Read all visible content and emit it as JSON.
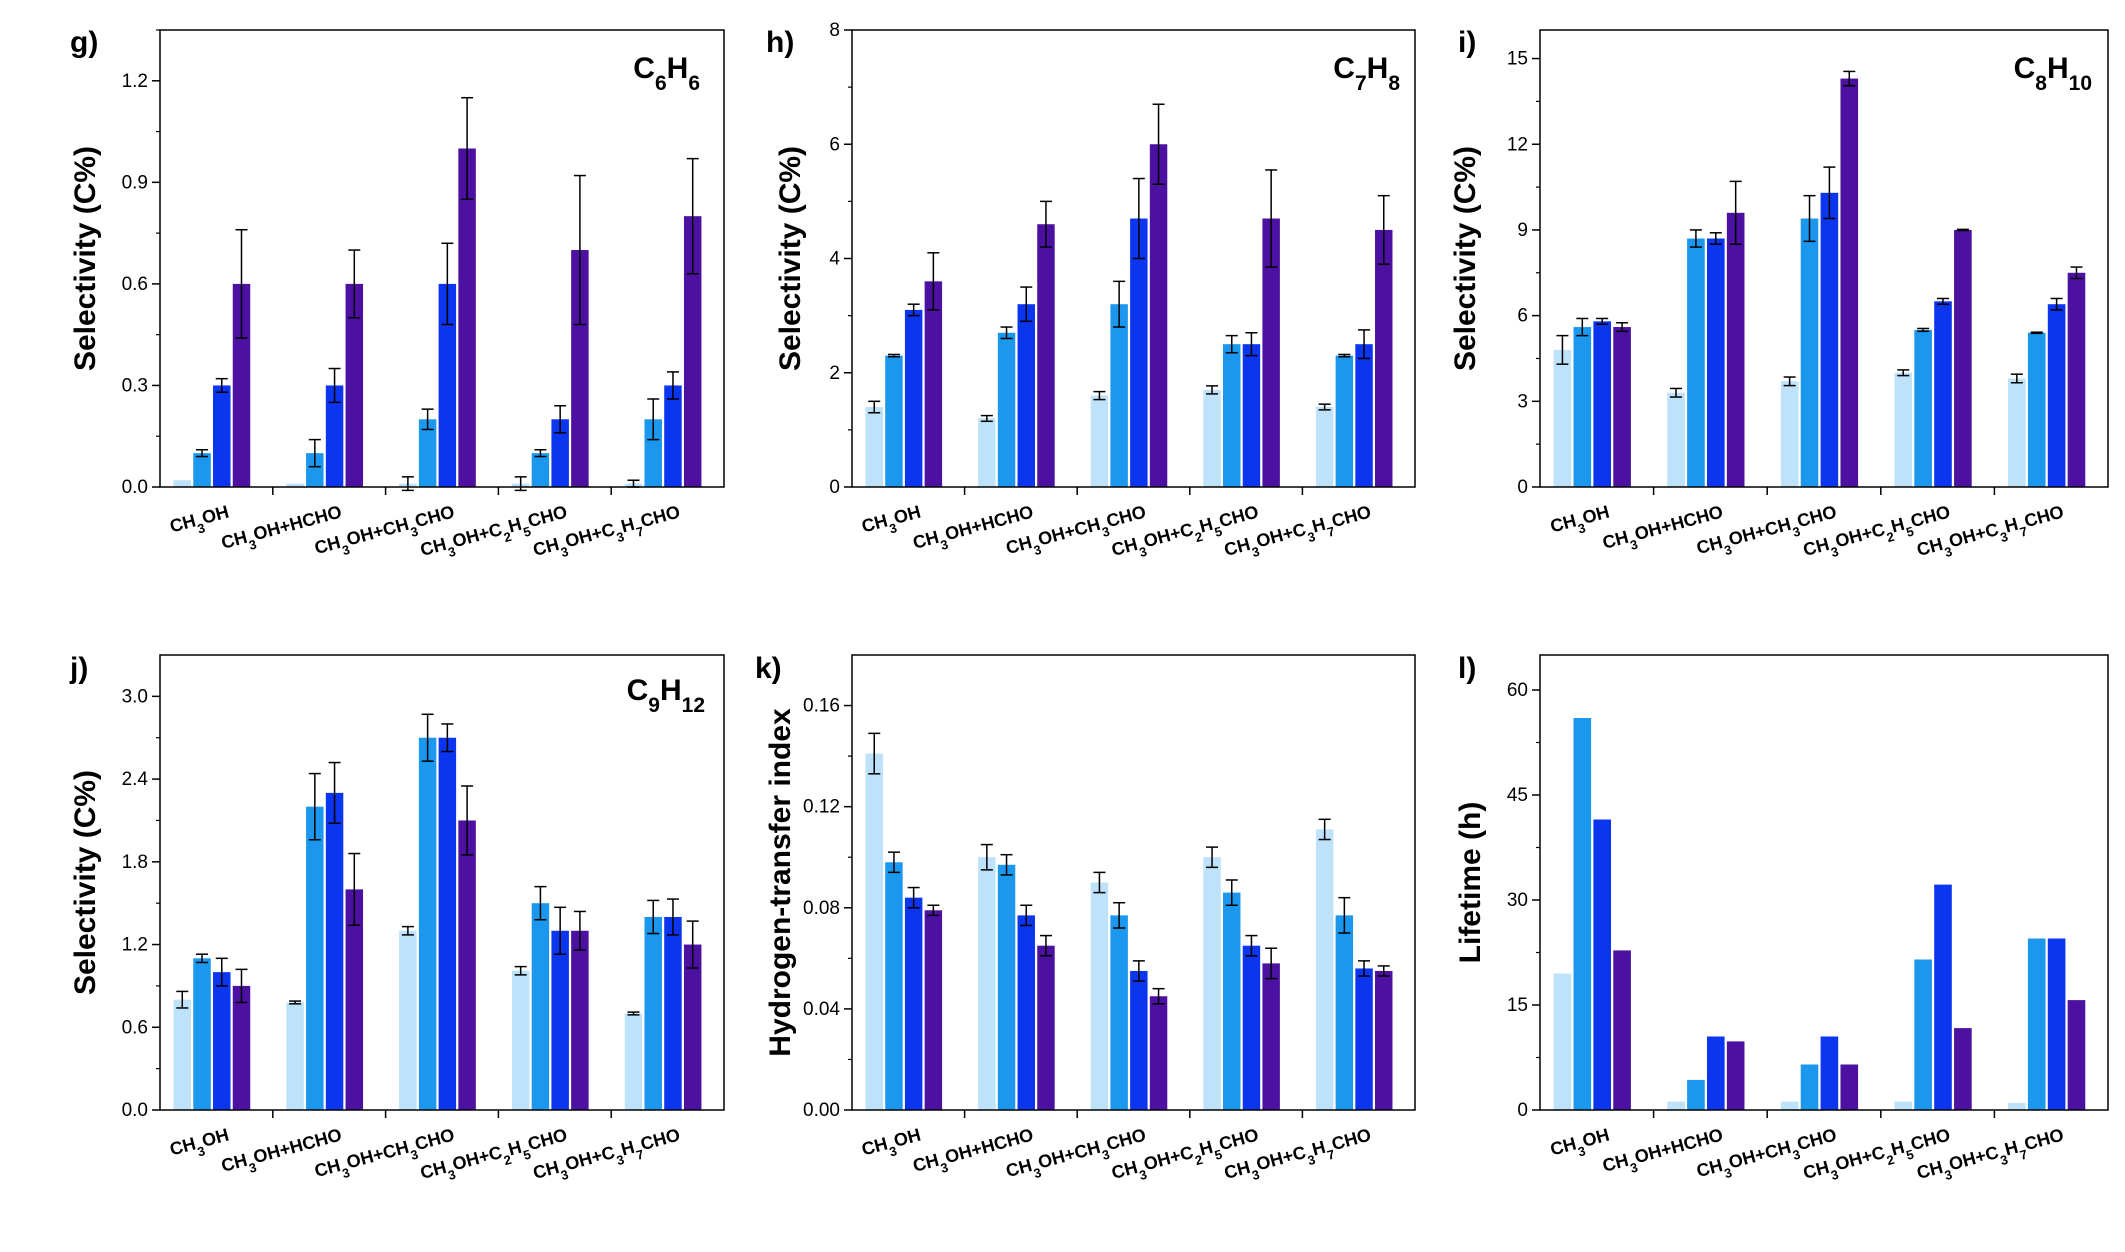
{
  "colors": [
    "#bde2fa",
    "#1b97ee",
    "#0b35ee",
    "#4c11a0"
  ],
  "chart_data": [
    {
      "panel": "g)",
      "type": "bar",
      "title_main": "C",
      "title_parts": [
        [
          "C",
          ""
        ],
        [
          "6",
          "sub"
        ],
        [
          "H",
          ""
        ],
        [
          "6",
          "sub"
        ]
      ],
      "ylabel": "Selectivity (C%)",
      "ylim": [
        0,
        1.35
      ],
      "yticks": [
        0.0,
        0.3,
        0.6,
        0.9,
        1.2
      ],
      "ytick_labels": [
        "0.0",
        "0.3",
        "0.6",
        "0.9",
        "1.2"
      ],
      "categories": [
        [
          [
            "CH",
            ""
          ],
          [
            "3",
            "sub"
          ],
          [
            "OH",
            ""
          ]
        ],
        [
          [
            "CH",
            ""
          ],
          [
            "3",
            "sub"
          ],
          [
            "OH+HCHO",
            ""
          ]
        ],
        [
          [
            "CH",
            ""
          ],
          [
            "3",
            "sub"
          ],
          [
            "OH+CH",
            ""
          ],
          [
            "3",
            "sub"
          ],
          [
            "CHO",
            ""
          ]
        ],
        [
          [
            "CH",
            ""
          ],
          [
            "3",
            "sub"
          ],
          [
            "OH+C",
            ""
          ],
          [
            "2",
            "sub"
          ],
          [
            "H",
            ""
          ],
          [
            "5",
            "sub"
          ],
          [
            "CHO",
            ""
          ]
        ],
        [
          [
            "CH",
            ""
          ],
          [
            "3",
            "sub"
          ],
          [
            "OH+C",
            ""
          ],
          [
            "3",
            "sub"
          ],
          [
            "H",
            ""
          ],
          [
            "7",
            "sub"
          ],
          [
            "CHO",
            ""
          ]
        ]
      ],
      "series": [
        {
          "values": [
            0.02,
            0.01,
            0.01,
            0.01,
            0.01
          ],
          "err": [
            0,
            0,
            0.02,
            0.02,
            0.01
          ]
        },
        {
          "values": [
            0.1,
            0.1,
            0.2,
            0.1,
            0.2
          ],
          "err": [
            0.01,
            0.04,
            0.03,
            0.01,
            0.06
          ]
        },
        {
          "values": [
            0.3,
            0.3,
            0.6,
            0.2,
            0.3
          ],
          "err": [
            0.02,
            0.05,
            0.12,
            0.04,
            0.04
          ]
        },
        {
          "values": [
            0.6,
            0.6,
            1.0,
            0.7,
            0.8
          ],
          "err": [
            0.16,
            0.1,
            0.15,
            0.22,
            0.17
          ]
        }
      ]
    },
    {
      "panel": "h)",
      "type": "bar",
      "title_parts": [
        [
          "C",
          ""
        ],
        [
          "7",
          "sub"
        ],
        [
          "H",
          ""
        ],
        [
          "8",
          "sub"
        ]
      ],
      "ylabel": "Selectivity (C%)",
      "ylim": [
        0,
        8
      ],
      "yticks": [
        0,
        2,
        4,
        6,
        8
      ],
      "ytick_labels": [
        "0",
        "2",
        "4",
        "6",
        "8"
      ],
      "categories": [
        [
          [
            "CH",
            ""
          ],
          [
            "3",
            "sub"
          ],
          [
            "OH",
            ""
          ]
        ],
        [
          [
            "CH",
            ""
          ],
          [
            "3",
            "sub"
          ],
          [
            "OH+HCHO",
            ""
          ]
        ],
        [
          [
            "CH",
            ""
          ],
          [
            "3",
            "sub"
          ],
          [
            "OH+CH",
            ""
          ],
          [
            "3",
            "sub"
          ],
          [
            "CHO",
            ""
          ]
        ],
        [
          [
            "CH",
            ""
          ],
          [
            "3",
            "sub"
          ],
          [
            "OH+C",
            ""
          ],
          [
            "2",
            "sub"
          ],
          [
            "H",
            ""
          ],
          [
            "5",
            "sub"
          ],
          [
            "CHO",
            ""
          ]
        ],
        [
          [
            "CH",
            ""
          ],
          [
            "3",
            "sub"
          ],
          [
            "OH+C",
            ""
          ],
          [
            "3",
            "sub"
          ],
          [
            "H",
            ""
          ],
          [
            "7",
            "sub"
          ],
          [
            "CHO",
            ""
          ]
        ]
      ],
      "series": [
        {
          "values": [
            1.4,
            1.2,
            1.6,
            1.7,
            1.4
          ],
          "err": [
            0.1,
            0.05,
            0.07,
            0.07,
            0.05
          ]
        },
        {
          "values": [
            2.3,
            2.7,
            3.2,
            2.5,
            2.3
          ],
          "err": [
            0.02,
            0.1,
            0.4,
            0.15,
            0.02
          ]
        },
        {
          "values": [
            3.1,
            3.2,
            4.7,
            2.5,
            2.5
          ],
          "err": [
            0.1,
            0.3,
            0.7,
            0.2,
            0.25
          ]
        },
        {
          "values": [
            3.6,
            4.6,
            6.0,
            4.7,
            4.5
          ],
          "err": [
            0.5,
            0.4,
            0.7,
            0.85,
            0.6
          ]
        }
      ]
    },
    {
      "panel": "i)",
      "type": "bar",
      "title_parts": [
        [
          "C",
          ""
        ],
        [
          "8",
          "sub"
        ],
        [
          "H",
          ""
        ],
        [
          "10",
          "sub"
        ]
      ],
      "ylabel": "Selectivity (C%)",
      "ylim": [
        0,
        16
      ],
      "yticks": [
        0,
        3,
        6,
        9,
        12,
        15
      ],
      "ytick_labels": [
        "0",
        "3",
        "6",
        "9",
        "12",
        "15"
      ],
      "categories": [
        [
          [
            "CH",
            ""
          ],
          [
            "3",
            "sub"
          ],
          [
            "OH",
            ""
          ]
        ],
        [
          [
            "CH",
            ""
          ],
          [
            "3",
            "sub"
          ],
          [
            "OH+HCHO",
            ""
          ]
        ],
        [
          [
            "CH",
            ""
          ],
          [
            "3",
            "sub"
          ],
          [
            "OH+CH",
            ""
          ],
          [
            "3",
            "sub"
          ],
          [
            "CHO",
            ""
          ]
        ],
        [
          [
            "CH",
            ""
          ],
          [
            "3",
            "sub"
          ],
          [
            "OH+C",
            ""
          ],
          [
            "2",
            "sub"
          ],
          [
            "H",
            ""
          ],
          [
            "5",
            "sub"
          ],
          [
            "CHO",
            ""
          ]
        ],
        [
          [
            "CH",
            ""
          ],
          [
            "3",
            "sub"
          ],
          [
            "OH+C",
            ""
          ],
          [
            "3",
            "sub"
          ],
          [
            "H",
            ""
          ],
          [
            "7",
            "sub"
          ],
          [
            "CHO",
            ""
          ]
        ]
      ],
      "series": [
        {
          "values": [
            4.8,
            3.3,
            3.7,
            4.0,
            3.8
          ],
          "err": [
            0.5,
            0.15,
            0.15,
            0.1,
            0.15
          ]
        },
        {
          "values": [
            5.6,
            8.7,
            9.4,
            5.5,
            5.4
          ],
          "err": [
            0.3,
            0.3,
            0.8,
            0.05,
            0.02
          ]
        },
        {
          "values": [
            5.8,
            8.7,
            10.3,
            6.5,
            6.4
          ],
          "err": [
            0.1,
            0.2,
            0.9,
            0.1,
            0.2
          ]
        },
        {
          "values": [
            5.6,
            9.6,
            14.3,
            9.0,
            7.5
          ],
          "err": [
            0.15,
            1.1,
            0.25,
            0.02,
            0.2
          ]
        }
      ]
    },
    {
      "panel": "j)",
      "type": "bar",
      "title_parts": [
        [
          "C",
          ""
        ],
        [
          "9",
          "sub"
        ],
        [
          "H",
          ""
        ],
        [
          "12",
          "sub"
        ]
      ],
      "ylabel": "Selectivity (C%)",
      "ylim": [
        0,
        3.3
      ],
      "yticks": [
        0.0,
        0.6,
        1.2,
        1.8,
        2.4,
        3.0
      ],
      "ytick_labels": [
        "0.0",
        "0.6",
        "1.2",
        "1.8",
        "2.4",
        "3.0"
      ],
      "categories": [
        [
          [
            "CH",
            ""
          ],
          [
            "3",
            "sub"
          ],
          [
            "OH",
            ""
          ]
        ],
        [
          [
            "CH",
            ""
          ],
          [
            "3",
            "sub"
          ],
          [
            "OH+HCHO",
            ""
          ]
        ],
        [
          [
            "CH",
            ""
          ],
          [
            "3",
            "sub"
          ],
          [
            "OH+CH",
            ""
          ],
          [
            "3",
            "sub"
          ],
          [
            "CHO",
            ""
          ]
        ],
        [
          [
            "CH",
            ""
          ],
          [
            "3",
            "sub"
          ],
          [
            "OH+C",
            ""
          ],
          [
            "2",
            "sub"
          ],
          [
            "H",
            ""
          ],
          [
            "5",
            "sub"
          ],
          [
            "CHO",
            ""
          ]
        ],
        [
          [
            "CH",
            ""
          ],
          [
            "3",
            "sub"
          ],
          [
            "OH+C",
            ""
          ],
          [
            "3",
            "sub"
          ],
          [
            "H",
            ""
          ],
          [
            "7",
            "sub"
          ],
          [
            "CHO",
            ""
          ]
        ]
      ],
      "series": [
        {
          "values": [
            0.8,
            0.78,
            1.3,
            1.01,
            0.7
          ],
          "err": [
            0.06,
            0.01,
            0.03,
            0.03,
            0.01
          ]
        },
        {
          "values": [
            1.1,
            2.2,
            2.7,
            1.5,
            1.4
          ],
          "err": [
            0.03,
            0.24,
            0.17,
            0.12,
            0.12
          ]
        },
        {
          "values": [
            1.0,
            2.3,
            2.7,
            1.3,
            1.4
          ],
          "err": [
            0.1,
            0.22,
            0.1,
            0.17,
            0.13
          ]
        },
        {
          "values": [
            0.9,
            1.6,
            2.1,
            1.3,
            1.2
          ],
          "err": [
            0.12,
            0.26,
            0.25,
            0.14,
            0.17
          ]
        }
      ]
    },
    {
      "panel": "k)",
      "type": "bar",
      "title_parts": [],
      "ylabel": "Hydrogen-transfer index",
      "ylim": [
        0,
        0.18
      ],
      "yticks": [
        0.0,
        0.04,
        0.08,
        0.12,
        0.16
      ],
      "ytick_labels": [
        "0.00",
        "0.04",
        "0.08",
        "0.12",
        "0.16"
      ],
      "categories": [
        [
          [
            "CH",
            ""
          ],
          [
            "3",
            "sub"
          ],
          [
            "OH",
            ""
          ]
        ],
        [
          [
            "CH",
            ""
          ],
          [
            "3",
            "sub"
          ],
          [
            "OH+HCHO",
            ""
          ]
        ],
        [
          [
            "CH",
            ""
          ],
          [
            "3",
            "sub"
          ],
          [
            "OH+CH",
            ""
          ],
          [
            "3",
            "sub"
          ],
          [
            "CHO",
            ""
          ]
        ],
        [
          [
            "CH",
            ""
          ],
          [
            "3",
            "sub"
          ],
          [
            "OH+C",
            ""
          ],
          [
            "2",
            "sub"
          ],
          [
            "H",
            ""
          ],
          [
            "5",
            "sub"
          ],
          [
            "CHO",
            ""
          ]
        ],
        [
          [
            "CH",
            ""
          ],
          [
            "3",
            "sub"
          ],
          [
            "OH+C",
            ""
          ],
          [
            "3",
            "sub"
          ],
          [
            "H",
            ""
          ],
          [
            "7",
            "sub"
          ],
          [
            "CHO",
            ""
          ]
        ]
      ],
      "series": [
        {
          "values": [
            0.141,
            0.1,
            0.09,
            0.1,
            0.111
          ],
          "err": [
            0.008,
            0.005,
            0.004,
            0.004,
            0.004
          ]
        },
        {
          "values": [
            0.098,
            0.097,
            0.077,
            0.086,
            0.077
          ],
          "err": [
            0.004,
            0.004,
            0.005,
            0.005,
            0.007
          ]
        },
        {
          "values": [
            0.084,
            0.077,
            0.055,
            0.065,
            0.056
          ],
          "err": [
            0.004,
            0.004,
            0.004,
            0.004,
            0.003
          ]
        },
        {
          "values": [
            0.079,
            0.065,
            0.045,
            0.058,
            0.055
          ],
          "err": [
            0.002,
            0.004,
            0.003,
            0.006,
            0.002
          ]
        }
      ]
    },
    {
      "panel": "l)",
      "type": "bar",
      "title_parts": [],
      "ylabel": "Lifetime (h)",
      "ylim": [
        0,
        65
      ],
      "yticks": [
        0,
        15,
        30,
        45,
        60
      ],
      "ytick_labels": [
        "0",
        "15",
        "30",
        "45",
        "60"
      ],
      "categories": [
        [
          [
            "CH",
            ""
          ],
          [
            "3",
            "sub"
          ],
          [
            "OH",
            ""
          ]
        ],
        [
          [
            "CH",
            ""
          ],
          [
            "3",
            "sub"
          ],
          [
            "OH+HCHO",
            ""
          ]
        ],
        [
          [
            "CH",
            ""
          ],
          [
            "3",
            "sub"
          ],
          [
            "OH+CH",
            ""
          ],
          [
            "3",
            "sub"
          ],
          [
            "CHO",
            ""
          ]
        ],
        [
          [
            "CH",
            ""
          ],
          [
            "3",
            "sub"
          ],
          [
            "OH+C",
            ""
          ],
          [
            "2",
            "sub"
          ],
          [
            "H",
            ""
          ],
          [
            "5",
            "sub"
          ],
          [
            "CHO",
            ""
          ]
        ],
        [
          [
            "CH",
            ""
          ],
          [
            "3",
            "sub"
          ],
          [
            "OH+C",
            ""
          ],
          [
            "3",
            "sub"
          ],
          [
            "H",
            ""
          ],
          [
            "7",
            "sub"
          ],
          [
            "CHO",
            ""
          ]
        ]
      ],
      "series": [
        {
          "values": [
            19.5,
            1.2,
            1.2,
            1.2,
            1.0
          ],
          "err": [
            0,
            0,
            0,
            0,
            0
          ]
        },
        {
          "values": [
            56,
            4.3,
            6.5,
            21.5,
            24.5
          ],
          "err": [
            0,
            0,
            0,
            0,
            0
          ]
        },
        {
          "values": [
            41.5,
            10.5,
            10.5,
            32.2,
            24.5
          ],
          "err": [
            0,
            0,
            0,
            0,
            0
          ]
        },
        {
          "values": [
            22.8,
            9.8,
            6.5,
            11.7,
            15.7
          ],
          "err": [
            0,
            0,
            0,
            0,
            0
          ]
        }
      ]
    }
  ]
}
